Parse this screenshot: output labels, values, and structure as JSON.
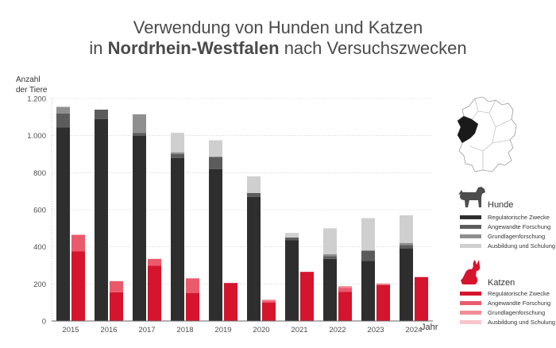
{
  "title": {
    "line1": "Verwendung von Hunden und Katzen",
    "line2_prefix": "in ",
    "line2_bold": "Nordrhein-Westfalen",
    "line2_suffix": " nach Versuchszwecken"
  },
  "chart_data": {
    "type": "bar",
    "stacked": true,
    "title": "Verwendung von Hunden und Katzen in Nordrhein-Westfalen nach Versuchszwecken",
    "ylabel_line1": "Anzahl",
    "ylabel_line2": "der Tiere",
    "xlabel": "Jahr",
    "ylim": [
      0,
      1200
    ],
    "yticks": [
      0,
      200,
      400,
      600,
      800,
      1000,
      1200
    ],
    "ytick_labels": [
      "0",
      "200",
      "400",
      "600",
      "800",
      "1.000",
      "1.200"
    ],
    "grid": true,
    "legend_position": "right",
    "categories": [
      "2015",
      "2016",
      "2017",
      "2018",
      "2019",
      "2020",
      "2021",
      "2022",
      "2023",
      "2024"
    ],
    "groups": [
      {
        "name": "Hunde",
        "series": [
          {
            "name": "Regulatorische Zwecke",
            "color": "#2e2e2e",
            "values": [
              1045,
              1090,
              1000,
              880,
              820,
              670,
              435,
              335,
              325,
              390
            ]
          },
          {
            "name": "Angewandte Forschung",
            "color": "#5c5c5c",
            "values": [
              75,
              50,
              15,
              20,
              65,
              20,
              15,
              15,
              55,
              20
            ]
          },
          {
            "name": "Grundlagenforschung",
            "color": "#8f8f8f",
            "values": [
              35,
              0,
              100,
              10,
              0,
              0,
              0,
              10,
              0,
              10
            ]
          },
          {
            "name": "Ausbildung und Schulung",
            "color": "#cfcfcf",
            "values": [
              0,
              0,
              0,
              105,
              90,
              90,
              25,
              140,
              175,
              150
            ]
          }
        ]
      },
      {
        "name": "Katzen",
        "series": [
          {
            "name": "Regulatorische Zwecke",
            "color": "#d5142d",
            "values": [
              375,
              155,
              298,
              150,
              205,
              100,
              265,
              158,
              193,
              237
            ]
          },
          {
            "name": "Angewandte Forschung",
            "color": "#ea5a6c",
            "values": [
              90,
              60,
              37,
              80,
              0,
              10,
              0,
              20,
              5,
              0
            ]
          },
          {
            "name": "Grundlagenforschung",
            "color": "#f08d98",
            "values": [
              0,
              0,
              0,
              0,
              0,
              5,
              0,
              10,
              5,
              0
            ]
          },
          {
            "name": "Ausbildung und Schulung",
            "color": "#f8c5cb",
            "values": [
              0,
              0,
              0,
              0,
              0,
              0,
              0,
              0,
              0,
              0
            ]
          }
        ]
      }
    ]
  },
  "icons": {
    "map": "germany-map-icon",
    "dog": "dog-icon",
    "cat": "cat-icon"
  },
  "colors": {
    "map_highlight": "#1a1a1a",
    "map_outline": "#9a9a9a"
  }
}
